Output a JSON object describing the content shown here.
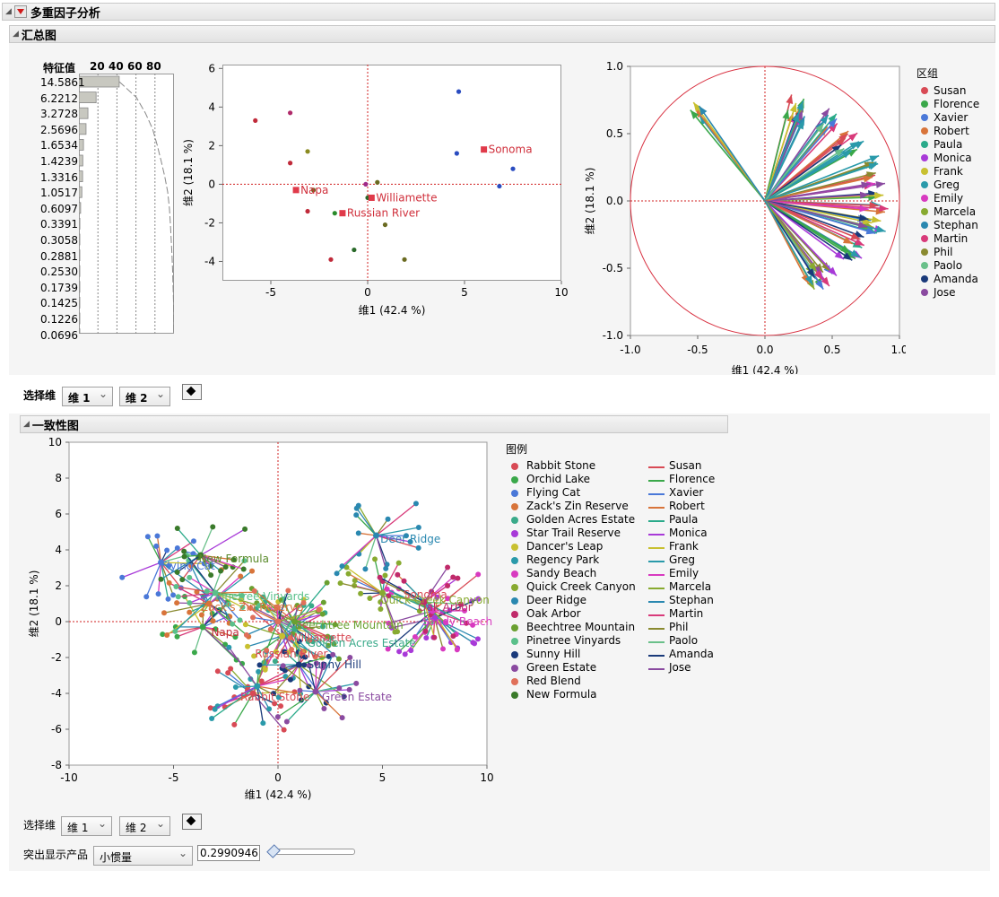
{
  "title": "多重因子分析",
  "summary": {
    "section_title": "汇总图",
    "eigen": {
      "header": "特征值",
      "ticks": [
        "20",
        "40",
        "60",
        "80"
      ],
      "values": [
        "14.5861",
        "6.2212",
        "3.2728",
        "2.5696",
        "1.6534",
        "1.4239",
        "1.3316",
        "1.0517",
        "0.6097",
        "0.3391",
        "0.3058",
        "0.2881",
        "0.2530",
        "0.1739",
        "0.1425",
        "0.1226",
        "0.0696"
      ],
      "percents": [
        42.4,
        18.1,
        9.5,
        7.5,
        4.8,
        4.1,
        3.9,
        3.1,
        1.8,
        1.0,
        0.9,
        0.8,
        0.7,
        0.5,
        0.4,
        0.4,
        0.2
      ],
      "cumulative": [
        42.4,
        60.5,
        70.0,
        77.5,
        82.3,
        86.4,
        90.3,
        93.4,
        95.2,
        96.2,
        97.1,
        97.9,
        98.6,
        99.1,
        99.5,
        99.9,
        100
      ]
    },
    "score_plot": {
      "xlabel": "维1  (42.4 %)",
      "ylabel": "维2  (18.1 %)",
      "x_ticks": [
        "-5",
        "0",
        "5",
        "10"
      ],
      "y_ticks": [
        "6",
        "4",
        "2",
        "0",
        "-2",
        "-4"
      ],
      "labels": [
        {
          "text": "Sonoma",
          "x": 6.0,
          "y": 1.8
        },
        {
          "text": "Napa",
          "x": -3.7,
          "y": -0.3
        },
        {
          "text": "Williamette",
          "x": 0.2,
          "y": -0.7
        },
        {
          "text": "Russian River",
          "x": -1.3,
          "y": -1.5
        }
      ],
      "points": [
        {
          "x": 4.7,
          "y": 4.8,
          "c": "#2a4cc0"
        },
        {
          "x": 4.6,
          "y": 1.6,
          "c": "#2a4cc0"
        },
        {
          "x": 7.5,
          "y": 0.8,
          "c": "#2a4cc0"
        },
        {
          "x": 6.8,
          "y": -0.1,
          "c": "#2a4cc0"
        },
        {
          "x": -5.8,
          "y": 3.3,
          "c": "#c02a3a"
        },
        {
          "x": -4.0,
          "y": 3.7,
          "c": "#b02a6a"
        },
        {
          "x": -4.0,
          "y": 1.1,
          "c": "#c02a3a"
        },
        {
          "x": -3.1,
          "y": 1.7,
          "c": "#8a8a20"
        },
        {
          "x": -2.8,
          "y": -0.3,
          "c": "#6a6a20"
        },
        {
          "x": -3.1,
          "y": -1.4,
          "c": "#c02a3a"
        },
        {
          "x": -1.7,
          "y": -1.5,
          "c": "#2a8a2a"
        },
        {
          "x": -0.1,
          "y": 0.0,
          "c": "#a02a8a"
        },
        {
          "x": 0.5,
          "y": 0.1,
          "c": "#6a6a20"
        },
        {
          "x": 0.0,
          "y": -0.7,
          "c": "#2a6a2a"
        },
        {
          "x": 0.9,
          "y": -2.1,
          "c": "#6a6a20"
        },
        {
          "x": -0.7,
          "y": -3.4,
          "c": "#2a6a2a"
        },
        {
          "x": -1.9,
          "y": -3.9,
          "c": "#c02a3a"
        },
        {
          "x": 1.9,
          "y": -3.9,
          "c": "#6a6a20"
        }
      ]
    },
    "loading_plot": {
      "xlabel": "维1   (42.4 %)",
      "ylabel": "维2   (18.1 %)",
      "x_ticks": [
        "-1.0",
        "-0.5",
        "0.0",
        "0.5",
        "1.0"
      ],
      "y_ticks": [
        "1.0",
        "0.5",
        "0.0",
        "-0.5",
        "-1.0"
      ],
      "legend_title": "区组",
      "groups": [
        {
          "name": "Susan",
          "color": "#d84a55"
        },
        {
          "name": "Florence",
          "color": "#3aa84a"
        },
        {
          "name": "Xavier",
          "color": "#4a78d8"
        },
        {
          "name": "Robert",
          "color": "#d8743a"
        },
        {
          "name": "Paula",
          "color": "#2aaa8a"
        },
        {
          "name": "Monica",
          "color": "#a83ad8"
        },
        {
          "name": "Frank",
          "color": "#c8c030"
        },
        {
          "name": "Greg",
          "color": "#2a9aaa"
        },
        {
          "name": "Emily",
          "color": "#d83ac0"
        },
        {
          "name": "Marcela",
          "color": "#88aa30"
        },
        {
          "name": "Stephan",
          "color": "#2a88b0"
        },
        {
          "name": "Martin",
          "color": "#d83a7a"
        },
        {
          "name": "Phil",
          "color": "#8a8a30"
        },
        {
          "name": "Paolo",
          "color": "#6ac08a"
        },
        {
          "name": "Amanda",
          "color": "#1a3a7a"
        },
        {
          "name": "Jose",
          "color": "#8a4aa0"
        }
      ]
    }
  },
  "dim_select_1": {
    "label": "选择维",
    "dim_a": "维 1",
    "dim_b": "维 2"
  },
  "consensus": {
    "section_title": "一致性图",
    "xlabel": "维1   (42.4 %)",
    "ylabel": "维2   (18.1 %)",
    "x_ticks": [
      "-10",
      "-5",
      "0",
      "5",
      "10"
    ],
    "y_ticks": [
      "10",
      "8",
      "6",
      "4",
      "2",
      "0",
      "-2",
      "-4",
      "-6",
      "-8"
    ],
    "legend_title": "图例",
    "products": [
      {
        "name": "Rabbit Stone",
        "color": "#d84a55",
        "cx": -1.2,
        "cy": -4.0
      },
      {
        "name": "Orchid Lake",
        "color": "#3aa84a",
        "cx": -3.6,
        "cy": -0.3
      },
      {
        "name": "Flying Cat",
        "color": "#4a78d8",
        "cx": -5.6,
        "cy": 3.3
      },
      {
        "name": "Zack's Zin Reserve",
        "color": "#d8743a",
        "cx": -3.3,
        "cy": 1.0
      },
      {
        "name": "Golden Acres Estate",
        "color": "#3aaa8a",
        "cx": 0.8,
        "cy": -0.4
      },
      {
        "name": "Star Trail Reserve",
        "color": "#a83ad8",
        "cx": 7.5,
        "cy": 0.2
      },
      {
        "name": "Dancer's Leap",
        "color": "#c8c030",
        "cx": 0.2,
        "cy": -0.8
      },
      {
        "name": "Regency Park",
        "color": "#2a9aaa",
        "cx": -1.0,
        "cy": -3.6
      },
      {
        "name": "Sandy Beach",
        "color": "#d83ac0",
        "cx": 7.4,
        "cy": 0.6
      },
      {
        "name": "Quick Creek Canyon",
        "color": "#88aa30",
        "cx": 5.0,
        "cy": 1.6
      },
      {
        "name": "Deer Ridge",
        "color": "#2a88b0",
        "cx": 4.7,
        "cy": 4.8
      },
      {
        "name": "Oak Arbor",
        "color": "#c02a6a",
        "cx": 7.0,
        "cy": 1.1
      },
      {
        "name": "Beechtree Mountain",
        "color": "#6aa030",
        "cx": 0.8,
        "cy": 0.0
      },
      {
        "name": "Pinetree Vinyards",
        "color": "#5ac08a",
        "cx": -3.0,
        "cy": 1.6
      },
      {
        "name": "Sunny Hill",
        "color": "#1a3a7a",
        "cx": 1.0,
        "cy": -2.4
      },
      {
        "name": "Green Estate",
        "color": "#8a4aa0",
        "cx": 1.8,
        "cy": -3.9
      },
      {
        "name": "Red Blend",
        "color": "#e0705a",
        "cx": 0.0,
        "cy": 0.0
      },
      {
        "name": "New Formula",
        "color": "#3a7a2a",
        "cx": -3.7,
        "cy": 3.7
      }
    ],
    "point_labels": [
      {
        "text": "Deer Ridge",
        "x": 4.9,
        "y": 4.6,
        "c": "#2a88b0"
      },
      {
        "text": "New Formula",
        "x": -3.8,
        "y": 3.5,
        "c": "#5a8a2a"
      },
      {
        "text": "Flying Cat",
        "x": -5.6,
        "y": 3.1,
        "c": "#4a78d8"
      },
      {
        "text": "Pinetree Vinyards",
        "x": -3.0,
        "y": 1.4,
        "c": "#5ac08a"
      },
      {
        "text": "Zack's Zin Reserve",
        "x": -3.7,
        "y": 0.8,
        "c": "#d8743a"
      },
      {
        "text": "Sonoma",
        "x": 6.0,
        "y": 1.5,
        "c": "#d84a55"
      },
      {
        "text": "Quick Creek Canyon",
        "x": 4.9,
        "y": 1.2,
        "c": "#88aa30"
      },
      {
        "text": "Oak Arbor",
        "x": 6.7,
        "y": 0.8,
        "c": "#c02a6a"
      },
      {
        "text": "Sandy Beach",
        "x": 6.9,
        "y": 0.0,
        "c": "#d83ac0"
      },
      {
        "text": "Beechtree Mountain",
        "x": 0.8,
        "y": -0.2,
        "c": "#6aa030"
      },
      {
        "text": "Napa",
        "x": -3.2,
        "y": -0.6,
        "c": "#c02a3a"
      },
      {
        "text": "Williamette",
        "x": 0.6,
        "y": -0.9,
        "c": "#d84a55"
      },
      {
        "text": "Golden Acres Estate",
        "x": 1.4,
        "y": -1.2,
        "c": "#3aaa8a"
      },
      {
        "text": "Russian River",
        "x": -1.1,
        "y": -1.8,
        "c": "#d84a55"
      },
      {
        "text": "Sunny Hill",
        "x": 1.4,
        "y": -2.4,
        "c": "#1a3a7a"
      },
      {
        "text": "Rabbit Stone",
        "x": -1.8,
        "y": -4.2,
        "c": "#d84a55"
      },
      {
        "text": "Green Estate",
        "x": 2.1,
        "y": -4.2,
        "c": "#8a4aa0"
      }
    ],
    "judges": [
      {
        "name": "Susan",
        "color": "#d84a55"
      },
      {
        "name": "Florence",
        "color": "#3aa84a"
      },
      {
        "name": "Xavier",
        "color": "#4a78d8"
      },
      {
        "name": "Robert",
        "color": "#d8743a"
      },
      {
        "name": "Paula",
        "color": "#2aaa8a"
      },
      {
        "name": "Monica",
        "color": "#a83ad8"
      },
      {
        "name": "Frank",
        "color": "#c8c030"
      },
      {
        "name": "Greg",
        "color": "#2a9aaa"
      },
      {
        "name": "Emily",
        "color": "#d83ac0"
      },
      {
        "name": "Marcela",
        "color": "#88aa30"
      },
      {
        "name": "Stephan",
        "color": "#2a88b0"
      },
      {
        "name": "Martin",
        "color": "#d83a7a"
      },
      {
        "name": "Phil",
        "color": "#8a8a30"
      },
      {
        "name": "Paolo",
        "color": "#6ac08a"
      },
      {
        "name": "Amanda",
        "color": "#1a3a7a"
      },
      {
        "name": "Jose",
        "color": "#8a4aa0"
      }
    ]
  },
  "dim_select_2": {
    "label": "选择维",
    "dim_a": "维 1",
    "dim_b": "维 2"
  },
  "highlight": {
    "label": "突出显示产品",
    "selected": "小惯量",
    "value": "0.2990946",
    "slider_fraction": 0.0
  }
}
